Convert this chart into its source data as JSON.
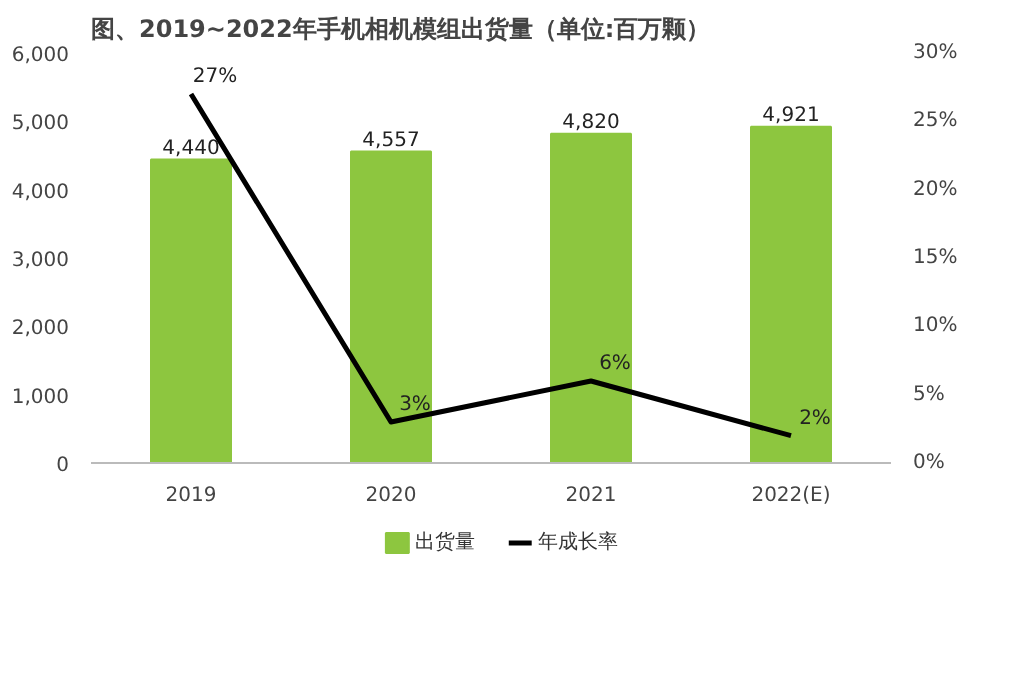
{
  "chart_data": {
    "type": "bar",
    "title": "图、2019~2022年手机相机模组出货量（单位:百万颗）",
    "categories": [
      "2019",
      "2020",
      "2021",
      "2022(E)"
    ],
    "series": [
      {
        "name": "出货量",
        "color": "#8dc63f",
        "values": [
          4440,
          4557,
          4820,
          4921
        ],
        "value_labels": [
          "4,440",
          "4,557",
          "4,820",
          "4,921"
        ]
      },
      {
        "name": "年成长率",
        "type": "line",
        "axis": "y2",
        "color": "#000000",
        "values": [
          27,
          3,
          6,
          2
        ],
        "value_labels": [
          "27%",
          "3%",
          "6%",
          "2%"
        ]
      }
    ],
    "ylim": [
      0,
      6000
    ],
    "yticks": [
      0,
      {
        "value": 1000,
        "label": "1,000"
      },
      {
        "value": 2000,
        "label": "2,000"
      },
      {
        "value": 3000,
        "label": "3,000"
      },
      {
        "value": 4000,
        "label": "4,000"
      },
      {
        "value": 5000,
        "label": "5,000"
      },
      {
        "value": 6000,
        "label": "6,000"
      }
    ],
    "y2lim": [
      0,
      30
    ],
    "y2ticks": [
      {
        "value": 0,
        "label": "0%"
      },
      {
        "value": 5,
        "label": "5%"
      },
      {
        "value": 10,
        "label": "10%"
      },
      {
        "value": 15,
        "label": "15%"
      },
      {
        "value": 20,
        "label": "20%"
      },
      {
        "value": 25,
        "label": "25%"
      },
      {
        "value": 30,
        "label": "30%"
      }
    ],
    "grid": false,
    "legend": "bottom"
  }
}
